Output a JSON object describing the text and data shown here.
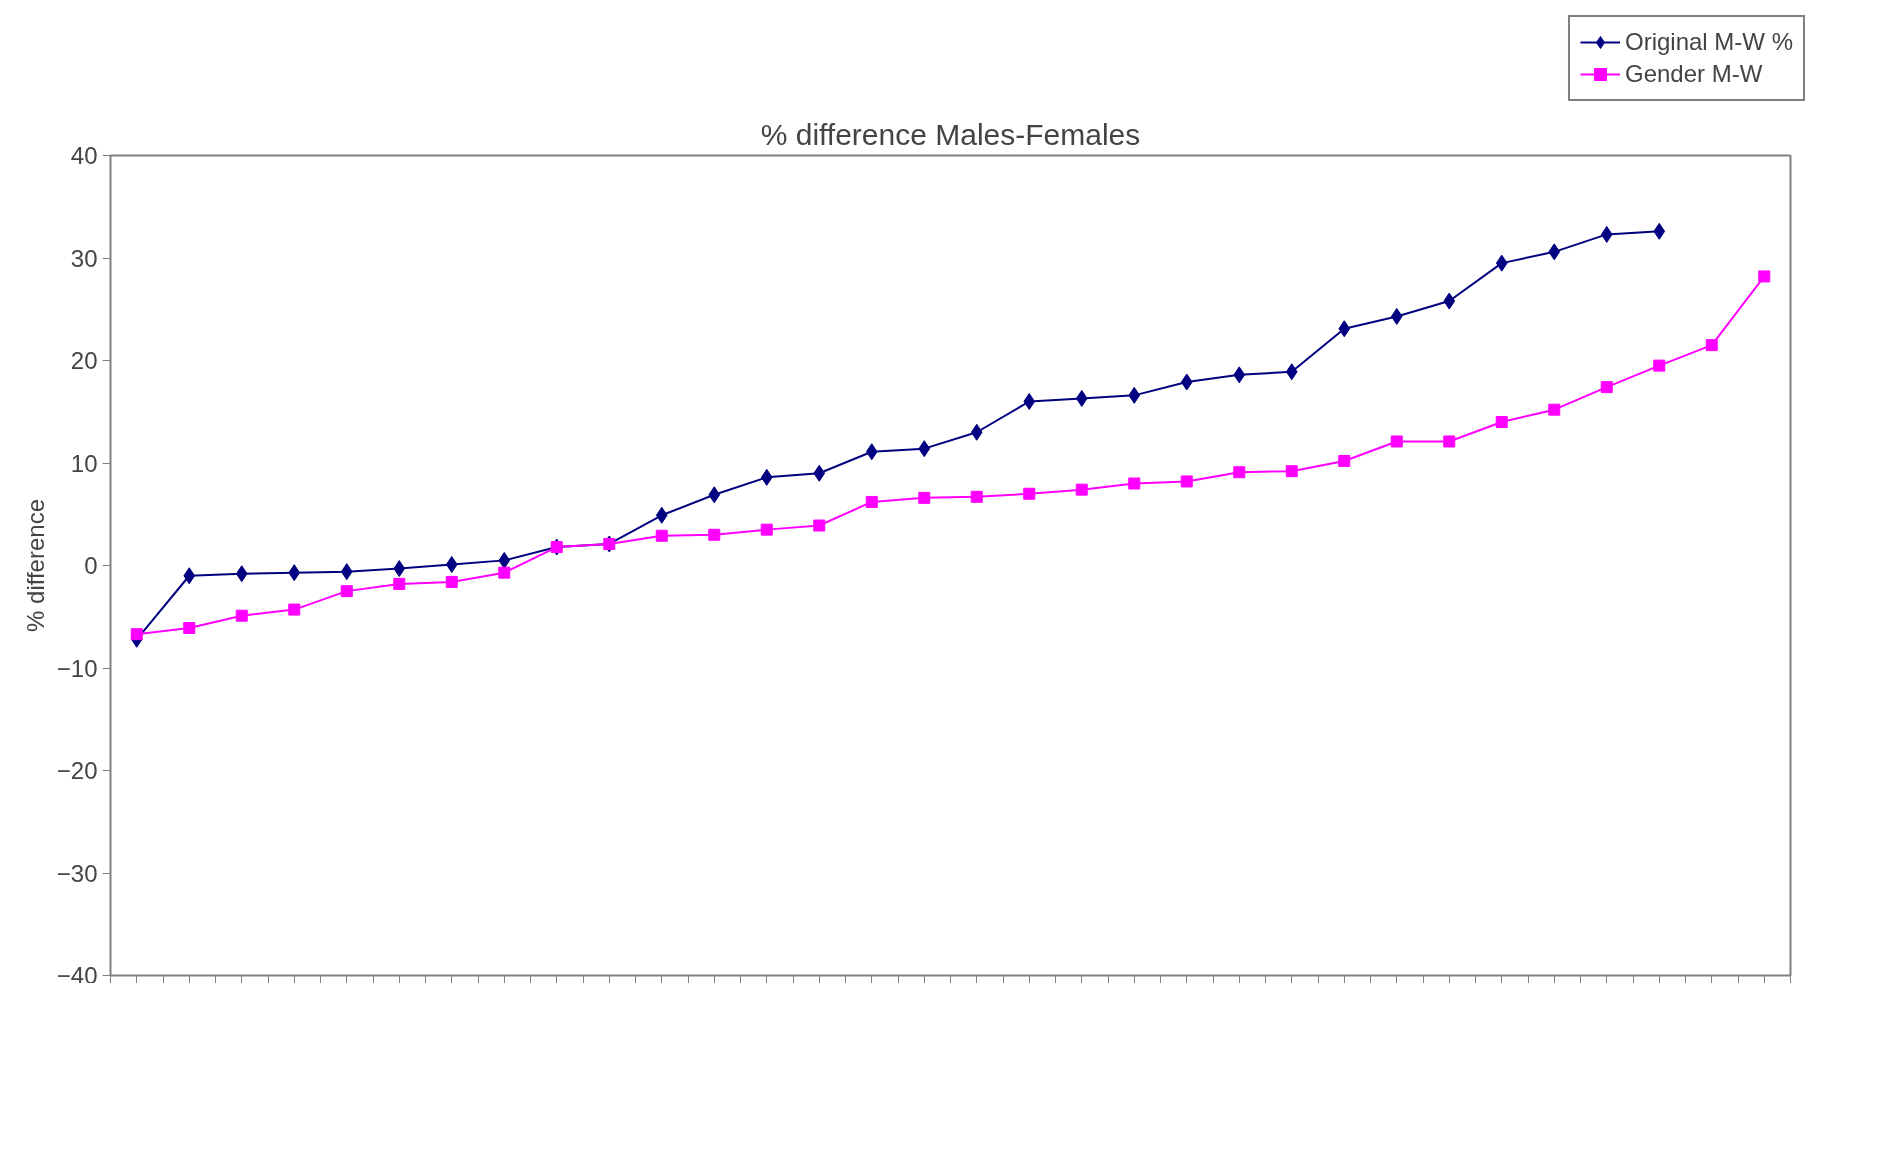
{
  "chart_data": {
    "type": "line",
    "title": "% difference Males-Females",
    "ylabel": "% difference",
    "categories": [
      null,
      null,
      null,
      null,
      null,
      null,
      null,
      null,
      null,
      null,
      null,
      null,
      null,
      null,
      null,
      null,
      null,
      null,
      null,
      null,
      null,
      null,
      null,
      null,
      null,
      null,
      null,
      null,
      null,
      null,
      null,
      null
    ],
    "series": [
      {
        "name": "Original M-W %",
        "color": "#000080",
        "marker": "diamond",
        "values": [
          -7.2,
          -1.0,
          -0.8,
          -0.7,
          -0.6,
          -0.3,
          0.1,
          0.5,
          1.8,
          2.1,
          4.9,
          6.9,
          8.6,
          9.0,
          11.1,
          11.4,
          13.0,
          16.0,
          16.3,
          16.6,
          17.9,
          18.6,
          18.9,
          23.1,
          24.3,
          25.8,
          29.5,
          30.6,
          32.3,
          32.6,
          null,
          null
        ]
      },
      {
        "name": "Gender M-W",
        "color": "#ff00ff",
        "marker": "square",
        "values": [
          -6.7,
          -6.1,
          -4.9,
          -4.3,
          -2.5,
          -1.8,
          -1.6,
          -0.7,
          1.8,
          2.1,
          2.9,
          3.0,
          3.5,
          3.9,
          6.2,
          6.6,
          6.7,
          7.0,
          7.4,
          8.0,
          8.2,
          9.1,
          9.2,
          10.2,
          12.1,
          12.1,
          14.0,
          15.2,
          17.4,
          19.5,
          21.5,
          28.2
        ]
      }
    ],
    "ylim": [
      -40,
      40
    ],
    "yticks": [
      -40,
      -30,
      -20,
      -10,
      0,
      10,
      20,
      30,
      40
    ],
    "grid": false,
    "legend": "top right",
    "line_style": "solid"
  }
}
